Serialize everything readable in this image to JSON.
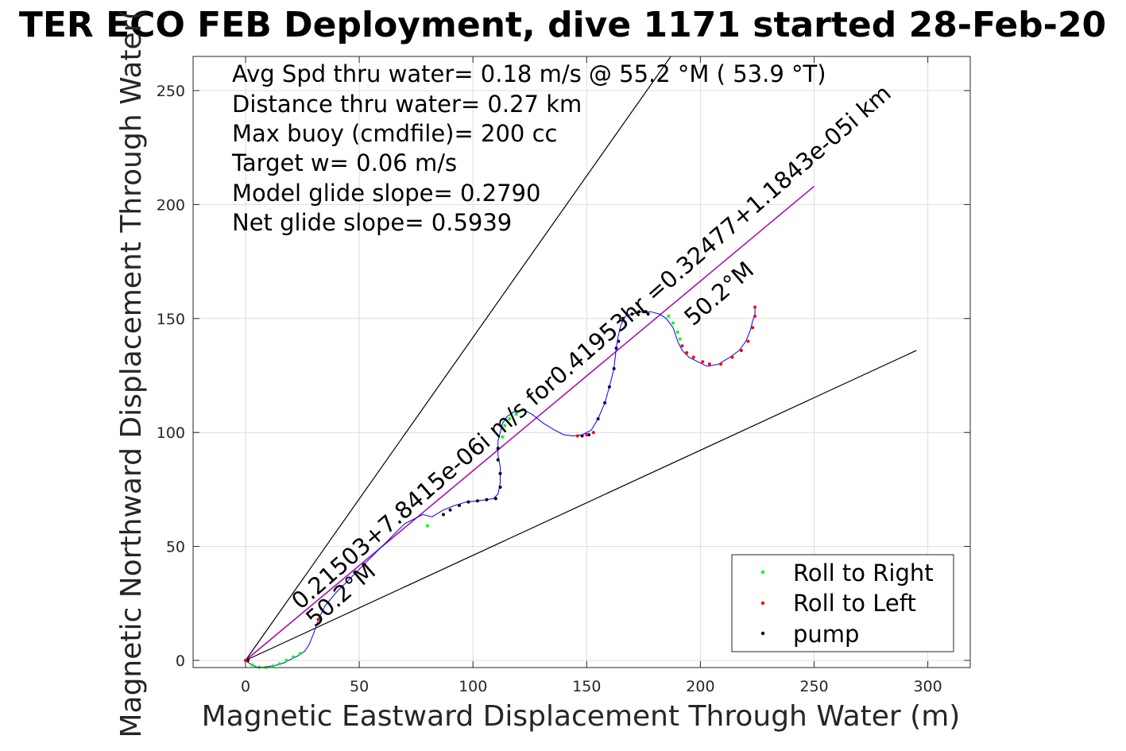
{
  "chart_data": {
    "type": "line",
    "title": "TER ECO FEB Deployment, dive 1171 started 28-Feb-20",
    "xlabel": "Magnetic Eastward Displacement Through Water (m)",
    "ylabel": "Magnetic Northward Displacement Through Water(",
    "xlim": [
      -23,
      318
    ],
    "ylim": [
      -3,
      265
    ],
    "xticks": [
      0,
      50,
      100,
      150,
      200,
      250,
      300
    ],
    "yticks": [
      0,
      50,
      100,
      150,
      200,
      250
    ],
    "grid": true,
    "info_lines": [
      "Avg Spd thru water=  0.18 m/s @  55.2 °M ( 53.9 °T)",
      "Distance thru water=  0.27 km",
      "Max buoy (cmdfile)= 200 cc",
      "Target w= 0.06 m/s",
      "Model glide slope= 0.2790",
      "Net glide slope= 0.5939"
    ],
    "annotations": {
      "heading_line_label": "0.21503+7.8415e-06i m/s for0.41953hr =0.32477+1.1843e-05i km",
      "heading_start_label": "50.2°M",
      "heading_end_label": "50.2°M"
    },
    "legend": {
      "position": "bottom-right",
      "entries": [
        {
          "label": "Roll to Right",
          "color": "#00ff00"
        },
        {
          "label": "Roll to Left",
          "color": "#ff0000"
        },
        {
          "label": "pump",
          "color": "#000000"
        }
      ]
    },
    "guide_lines": [
      {
        "name": "upper-bound",
        "color": "#000000",
        "points": [
          [
            0,
            0
          ],
          [
            187,
            265
          ]
        ]
      },
      {
        "name": "lower-bound",
        "color": "#000000",
        "points": [
          [
            0,
            0
          ],
          [
            295,
            136
          ]
        ]
      },
      {
        "name": "heading",
        "color": "#aa00aa",
        "points": [
          [
            0,
            0
          ],
          [
            250,
            208
          ]
        ]
      }
    ],
    "track": {
      "color": "#0000ff",
      "x": [
        0,
        2,
        5,
        8,
        11,
        14,
        17,
        20,
        23,
        26,
        28,
        30,
        32,
        35,
        40,
        46,
        52,
        58,
        64,
        70,
        74,
        78,
        82,
        87,
        92,
        97,
        102,
        106,
        109,
        111,
        112,
        112,
        111,
        111,
        112,
        113,
        115,
        118,
        122,
        126,
        131,
        136,
        140,
        144,
        148,
        152,
        155,
        158,
        160,
        162,
        163,
        164,
        165,
        167,
        170,
        174,
        178,
        182,
        185,
        188,
        190,
        192,
        195,
        199,
        203,
        208,
        213,
        217,
        220,
        222,
        223,
        224,
        224
      ],
      "y": [
        0,
        -1.5,
        -3,
        -3,
        -2.5,
        -2,
        -1,
        0.5,
        2,
        4,
        7,
        12,
        18,
        24,
        30,
        36,
        42,
        48,
        54,
        60,
        62,
        64,
        63,
        66,
        68,
        69.5,
        70,
        70.5,
        71,
        73,
        78,
        85,
        90,
        96,
        100,
        104,
        107,
        109,
        110,
        108,
        104,
        101,
        99,
        98.5,
        99,
        101,
        106,
        113,
        120,
        128,
        137,
        143,
        147,
        151,
        152,
        153,
        153,
        152,
        150,
        146,
        140,
        136,
        133,
        131,
        129,
        130,
        133,
        136,
        140,
        145,
        149,
        152,
        155
      ]
    },
    "samples": [
      {
        "type": "pump",
        "color": "#000000",
        "x": [
          1,
          87,
          90,
          94,
          98,
          102,
          106,
          110,
          112,
          112,
          111,
          111,
          166,
          170,
          173,
          175,
          176,
          177
        ],
        "y": [
          0,
          64,
          66,
          68,
          69.5,
          70,
          70.5,
          71,
          76,
          82,
          88,
          93,
          150,
          152,
          153,
          153,
          153,
          152
        ]
      },
      {
        "type": "pump",
        "color": "#000066",
        "x": [
          155,
          158,
          160,
          162,
          163,
          164,
          148,
          151
        ],
        "y": [
          106,
          113,
          120,
          128,
          137,
          140,
          98.5,
          99
        ]
      },
      {
        "type": "roll_right",
        "color": "#00ff00",
        "x": [
          3,
          6,
          9,
          12,
          15,
          18,
          21,
          24,
          80,
          113,
          114,
          116,
          119,
          122,
          186,
          188,
          190,
          191
        ],
        "y": [
          -2,
          -3,
          -3,
          -2.5,
          -1.5,
          0,
          1.5,
          3,
          59,
          98,
          103,
          106,
          108,
          110,
          151,
          148,
          144,
          141
        ]
      },
      {
        "type": "roll_left",
        "color": "#ff0000",
        "x": [
          0,
          32,
          146,
          150,
          153,
          192,
          194,
          197,
          201,
          204,
          209,
          214,
          218,
          221,
          223,
          224,
          224
        ],
        "y": [
          0,
          18,
          98.5,
          99,
          100,
          138,
          135,
          133,
          131,
          130,
          130,
          133,
          136,
          140,
          146,
          151,
          155
        ]
      }
    ]
  }
}
